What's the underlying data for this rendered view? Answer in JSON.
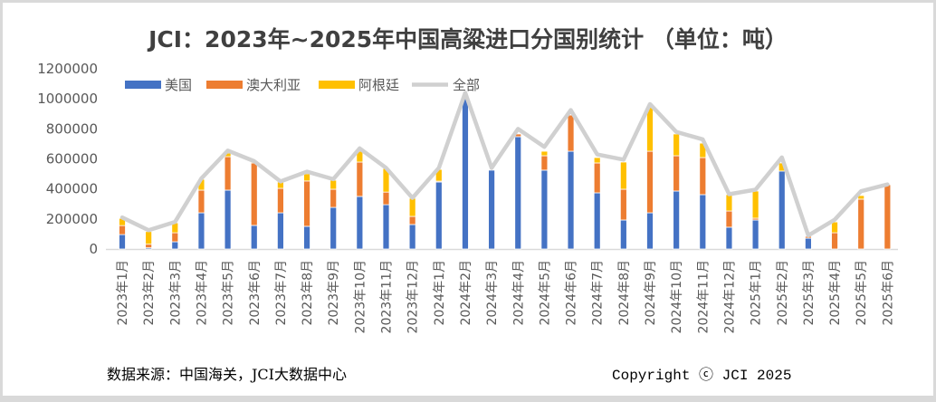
{
  "chart_data": {
    "type": "bar",
    "stacked": true,
    "title": "JCI：2023年~2025年中国高粱进口分国别统计  （单位：吨）",
    "xlabel": "",
    "ylabel": "",
    "ylim": [
      0,
      1200000
    ],
    "yticks": [
      0,
      200000,
      400000,
      600000,
      800000,
      1000000,
      1200000
    ],
    "ytick_labels": [
      "0",
      "200000",
      "400000",
      "600000",
      "800000",
      "1000000",
      "1200000"
    ],
    "grid": false,
    "legend_position": "top-left",
    "categories": [
      "2023年1月",
      "2023年2月",
      "2023年3月",
      "2023年4月",
      "2023年5月",
      "2023年6月",
      "2023年7月",
      "2023年8月",
      "2023年9月",
      "2023年10月",
      "2023年11月",
      "2023年12月",
      "2024年1月",
      "2024年2月",
      "2024年3月",
      "2024年4月",
      "2024年5月",
      "2024年6月",
      "2024年7月",
      "2024年8月",
      "2024年9月",
      "2024年10月",
      "2024年11月",
      "2024年12月",
      "2025年1月",
      "2025年2月",
      "2025年3月",
      "2025年4月",
      "2025年5月",
      "2025年6月"
    ],
    "series": [
      {
        "name": "美国",
        "kind": "bar",
        "color": "#4472c4",
        "values": [
          96000,
          8000,
          48000,
          241000,
          392000,
          157000,
          241000,
          151000,
          277000,
          350000,
          295000,
          163000,
          446000,
          1013000,
          525000,
          748000,
          525000,
          651000,
          374000,
          193000,
          241000,
          386000,
          362000,
          145000,
          193000,
          519000,
          72000,
          0,
          0,
          0
        ]
      },
      {
        "name": "澳大利亚",
        "kind": "bar",
        "color": "#ed7d31",
        "values": [
          60000,
          24000,
          60000,
          151000,
          223000,
          416000,
          163000,
          302000,
          121000,
          229000,
          84000,
          54000,
          6000,
          0,
          0,
          18000,
          96000,
          241000,
          199000,
          205000,
          410000,
          235000,
          247000,
          108000,
          12000,
          0,
          12000,
          108000,
          332000,
          428000
        ]
      },
      {
        "name": "阿根廷",
        "kind": "bar",
        "color": "#ffc000",
        "values": [
          48000,
          84000,
          66000,
          72000,
          24000,
          10000,
          42000,
          48000,
          60000,
          72000,
          157000,
          121000,
          78000,
          0,
          0,
          0,
          30000,
          0,
          36000,
          181000,
          301000,
          145000,
          96000,
          109000,
          181000,
          54000,
          0,
          72000,
          24000,
          0
        ]
      },
      {
        "name": "全部",
        "kind": "line",
        "color": "#d0d0d0",
        "values": [
          210000,
          125000,
          180000,
          470000,
          655000,
          585000,
          450000,
          515000,
          465000,
          670000,
          540000,
          340000,
          540000,
          1040000,
          540000,
          800000,
          680000,
          925000,
          630000,
          595000,
          965000,
          780000,
          730000,
          365000,
          395000,
          610000,
          90000,
          195000,
          385000,
          430000
        ]
      }
    ]
  },
  "footer": {
    "source": "数据来源：中国海关，JCI大数据中心",
    "copyright": "Copyright ⓒ JCI 2025"
  }
}
